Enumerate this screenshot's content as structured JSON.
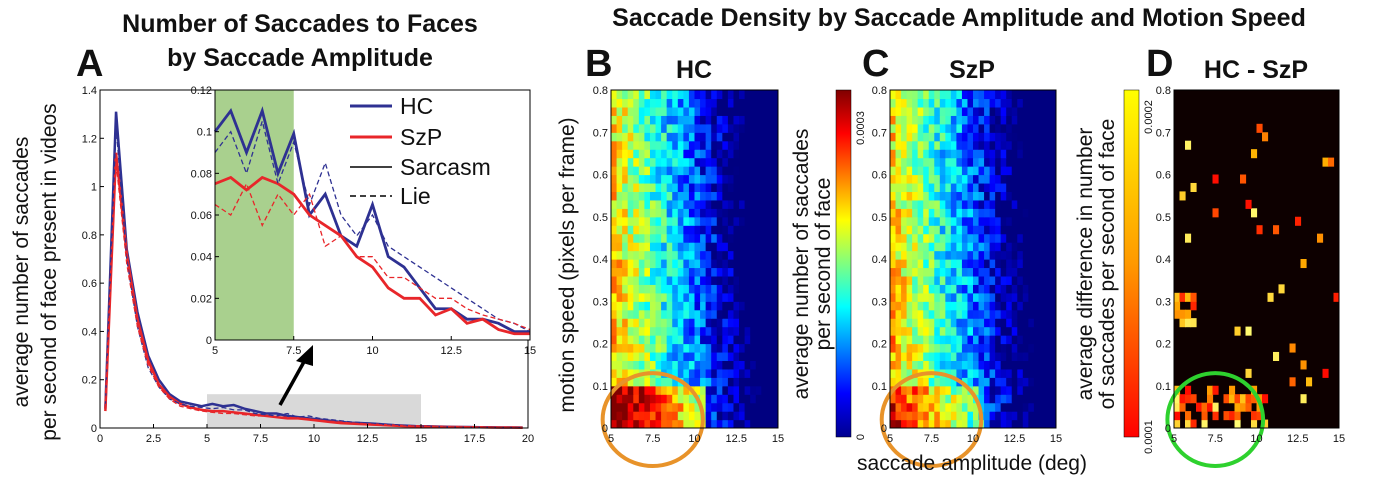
{
  "figure": {
    "titles": {
      "a": "Number of Saccades to Faces by Saccade Amplitude",
      "right": "Saccade Density by Saccade Amplitude and Motion Speed"
    },
    "panel_letters": [
      "A",
      "B",
      "C",
      "D"
    ],
    "shared_xlabel": "saccade amplitude (deg)"
  },
  "chart_data": [
    {
      "id": "A",
      "type": "line",
      "title": "Number of Saccades to Faces by Saccade Amplitude",
      "ylabel": "average number of saccades per second of face present in videos",
      "xlabel": "",
      "xlim": [
        0,
        20
      ],
      "ylim": [
        0,
        1.4
      ],
      "xticks": [
        "0",
        "2.5",
        "5",
        "7.5",
        "10",
        "12.5",
        "15",
        "17.5",
        "20"
      ],
      "yticks": [
        "0",
        "0.2",
        "0.4",
        "0.6",
        "0.8",
        "1",
        "1.2",
        "1.4"
      ],
      "highlight_band": {
        "x": [
          5,
          15
        ],
        "y": [
          0,
          0.14
        ],
        "color": "#d9d9d9"
      },
      "legend": [
        "HC",
        "SzP",
        "Sarcasm",
        "Lie"
      ],
      "colors": {
        "HC": "#2e3192",
        "SzP": "#e8262a"
      },
      "x": [
        0.25,
        0.75,
        1.25,
        1.75,
        2.25,
        2.75,
        3.25,
        3.75,
        4.25,
        4.75,
        5.25,
        5.75,
        6.25,
        6.75,
        7.25,
        7.75,
        8.25,
        8.75,
        9.25,
        9.75,
        10.25,
        10.75,
        11.25,
        11.75,
        12.25,
        12.75,
        13.25,
        13.75,
        14.25,
        14.75,
        15.25,
        15.75,
        16.25,
        16.75,
        17.25,
        17.75,
        18.25,
        18.75,
        19.25,
        19.75
      ],
      "series": [
        {
          "name": "HC",
          "style": "solid",
          "values": [
            0.08,
            1.31,
            0.74,
            0.48,
            0.3,
            0.2,
            0.14,
            0.11,
            0.1,
            0.09,
            0.1,
            0.09,
            0.095,
            0.08,
            0.07,
            0.06,
            0.06,
            0.05,
            0.045,
            0.04,
            0.035,
            0.03,
            0.025,
            0.022,
            0.02,
            0.018,
            0.015,
            0.012,
            0.01,
            0.008,
            0.007,
            0.006,
            0.005,
            0.004,
            0.004,
            0.003,
            0.003,
            0.002,
            0.002,
            0.002
          ]
        },
        {
          "name": "SzP",
          "style": "solid",
          "values": [
            0.07,
            1.14,
            0.72,
            0.45,
            0.28,
            0.18,
            0.13,
            0.1,
            0.085,
            0.075,
            0.07,
            0.07,
            0.065,
            0.06,
            0.055,
            0.05,
            0.045,
            0.04,
            0.04,
            0.035,
            0.03,
            0.025,
            0.02,
            0.018,
            0.016,
            0.014,
            0.012,
            0.01,
            0.008,
            0.007,
            0.006,
            0.005,
            0.004,
            0.004,
            0.003,
            0.003,
            0.002,
            0.002,
            0.002,
            0.001
          ]
        },
        {
          "name": "HC",
          "style": "dashed",
          "values": [
            0.09,
            1.25,
            0.7,
            0.42,
            0.25,
            0.17,
            0.12,
            0.1,
            0.09,
            0.085,
            0.08,
            0.085,
            0.075,
            0.075,
            0.06,
            0.055,
            0.05,
            0.06,
            0.045,
            0.05,
            0.04,
            0.035,
            0.03,
            0.025,
            0.022,
            0.02,
            0.015,
            0.012,
            0.01,
            0.008,
            0.007,
            0.006,
            0.005,
            0.004,
            0.003,
            0.003,
            0.002,
            0.002,
            0.002,
            0.001
          ]
        },
        {
          "name": "SzP",
          "style": "dashed",
          "values": [
            0.08,
            1.1,
            0.68,
            0.42,
            0.26,
            0.17,
            0.12,
            0.09,
            0.08,
            0.07,
            0.065,
            0.06,
            0.06,
            0.055,
            0.05,
            0.05,
            0.045,
            0.045,
            0.04,
            0.035,
            0.03,
            0.028,
            0.025,
            0.02,
            0.018,
            0.015,
            0.012,
            0.01,
            0.008,
            0.007,
            0.006,
            0.005,
            0.004,
            0.003,
            0.003,
            0.002,
            0.002,
            0.002,
            0.001,
            0.001
          ]
        }
      ],
      "inset": {
        "xlim": [
          5,
          15
        ],
        "ylim": [
          0,
          0.12
        ],
        "xticks": [
          "5",
          "7.5",
          "10",
          "12.5",
          "15"
        ],
        "yticks": [
          "0",
          "0.02",
          "0.04",
          "0.06",
          "0.08",
          "0.1",
          "0.12"
        ],
        "shaded": {
          "x": [
            5,
            7.5
          ],
          "color": "#a9d08e"
        },
        "x": [
          5,
          5.5,
          6,
          6.5,
          7,
          7.5,
          8,
          8.5,
          9,
          9.5,
          10,
          10.5,
          11,
          11.5,
          12,
          12.5,
          13,
          13.5,
          14,
          14.5,
          15
        ],
        "series": [
          {
            "name": "HC",
            "style": "solid",
            "values": [
              0.1,
              0.11,
              0.09,
              0.11,
              0.08,
              0.099,
              0.06,
              0.07,
              0.05,
              0.045,
              0.065,
              0.04,
              0.035,
              0.025,
              0.015,
              0.015,
              0.01,
              0.01,
              0.008,
              0.004,
              0.004
            ]
          },
          {
            "name": "SzP",
            "style": "solid",
            "values": [
              0.075,
              0.078,
              0.072,
              0.078,
              0.075,
              0.07,
              0.06,
              0.055,
              0.05,
              0.04,
              0.035,
              0.025,
              0.02,
              0.02,
              0.012,
              0.015,
              0.008,
              0.01,
              0.005,
              0.003,
              0.003
            ]
          },
          {
            "name": "HC",
            "style": "dashed",
            "values": [
              0.09,
              0.1,
              0.08,
              0.105,
              0.075,
              0.095,
              0.065,
              0.085,
              0.06,
              0.05,
              0.06,
              0.045,
              0.04,
              0.035,
              0.03,
              0.025,
              0.02,
              0.015,
              0.01,
              0.008,
              0.004
            ]
          },
          {
            "name": "SzP",
            "style": "dashed",
            "values": [
              0.065,
              0.06,
              0.075,
              0.055,
              0.07,
              0.06,
              0.07,
              0.045,
              0.05,
              0.04,
              0.04,
              0.03,
              0.03,
              0.025,
              0.02,
              0.02,
              0.015,
              0.012,
              0.01,
              0.008,
              0.005
            ]
          }
        ]
      }
    },
    {
      "id": "B",
      "type": "heatmap",
      "title": "HC",
      "ylabel": "motion speed (pixels per frame)",
      "xlim": [
        5,
        15
      ],
      "ylim": [
        0,
        0.8
      ],
      "xticks": [
        "5",
        "7.5",
        "10",
        "12.5",
        "15"
      ],
      "yticks": [
        "0",
        "0.1",
        "0.2",
        "0.3",
        "0.4",
        "0.5",
        "0.6",
        "0.7",
        "0.8"
      ],
      "colormap": "jet",
      "colorbar": {
        "label": "average number of saccades per second of face",
        "min": "0",
        "max": "0.0003"
      },
      "highlight_ellipse": {
        "cx": 7.5,
        "cy": 0.02,
        "rx": 3.0,
        "ry": 0.11,
        "color": "#e8932a"
      }
    },
    {
      "id": "C",
      "type": "heatmap",
      "title": "SzP",
      "xlim": [
        5,
        15
      ],
      "ylim": [
        0,
        0.8
      ],
      "xticks": [
        "5",
        "7.5",
        "10",
        "12.5",
        "15"
      ],
      "yticks": [
        "0",
        "0.1",
        "0.2",
        "0.3",
        "0.4",
        "0.5",
        "0.6",
        "0.7",
        "0.8"
      ],
      "colormap": "jet",
      "colorbar": {
        "label": "average difference in number of saccades per second of face",
        "min": "0.0001",
        "max": "0.0002"
      },
      "highlight_ellipse": {
        "cx": 7.5,
        "cy": 0.02,
        "rx": 3.0,
        "ry": 0.11,
        "color": "#e8932a"
      }
    },
    {
      "id": "D",
      "type": "heatmap",
      "title": "HC - SzP",
      "xlim": [
        5,
        15
      ],
      "ylim": [
        0,
        0.8
      ],
      "xticks": [
        "5",
        "7.5",
        "10",
        "12.5",
        "15"
      ],
      "yticks": [
        "0",
        "0.1",
        "0.2",
        "0.3",
        "0.4",
        "0.5",
        "0.6",
        "0.7",
        "0.8"
      ],
      "colormap": "hot",
      "highlight_ellipse": {
        "cx": 7.5,
        "cy": 0.02,
        "rx": 2.9,
        "ry": 0.11,
        "color": "#2ed12e"
      }
    }
  ]
}
